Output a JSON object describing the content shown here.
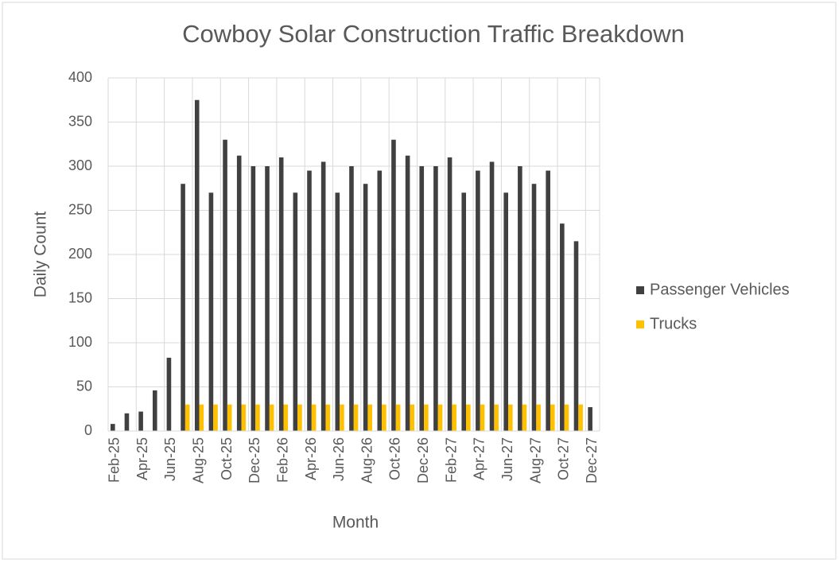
{
  "chart_data": {
    "type": "bar",
    "title": "Cowboy Solar Construction Traffic Breakdown",
    "x_label": "Month",
    "y_label": "Daily Count",
    "categories": [
      "Feb-25",
      null,
      "Apr-25",
      null,
      "Jun-25",
      null,
      "Aug-25",
      null,
      "Oct-25",
      null,
      "Dec-25",
      null,
      "Feb-26",
      null,
      "Apr-26",
      null,
      "Jun-26",
      null,
      "Aug-26",
      null,
      "Oct-26",
      null,
      "Dec-26",
      null,
      "Feb-27",
      null,
      "Apr-27",
      null,
      "Jun-27",
      null,
      "Aug-27",
      null,
      "Oct-27",
      null,
      "Dec-27"
    ],
    "series": [
      {
        "name": "Passenger Vehicles",
        "color": "#404040",
        "values": [
          8,
          20,
          22,
          46,
          83,
          280,
          375,
          270,
          330,
          312,
          300,
          300,
          310,
          270,
          295,
          305,
          270,
          300,
          280,
          295,
          330,
          312,
          300,
          300,
          310,
          270,
          295,
          305,
          270,
          300,
          280,
          295,
          235,
          215,
          27
        ]
      },
      {
        "name": "Trucks",
        "color": "#ffc000",
        "values": [
          0,
          0,
          0,
          0,
          0,
          30,
          30,
          30,
          30,
          30,
          30,
          30,
          30,
          30,
          30,
          30,
          30,
          30,
          30,
          30,
          30,
          30,
          30,
          30,
          30,
          30,
          30,
          30,
          30,
          30,
          30,
          30,
          30,
          30,
          0
        ]
      }
    ],
    "ylim": [
      0,
      400
    ],
    "yticks": [
      0,
      50,
      100,
      150,
      200,
      250,
      300,
      350,
      400
    ],
    "grid": true,
    "legend": "right"
  }
}
